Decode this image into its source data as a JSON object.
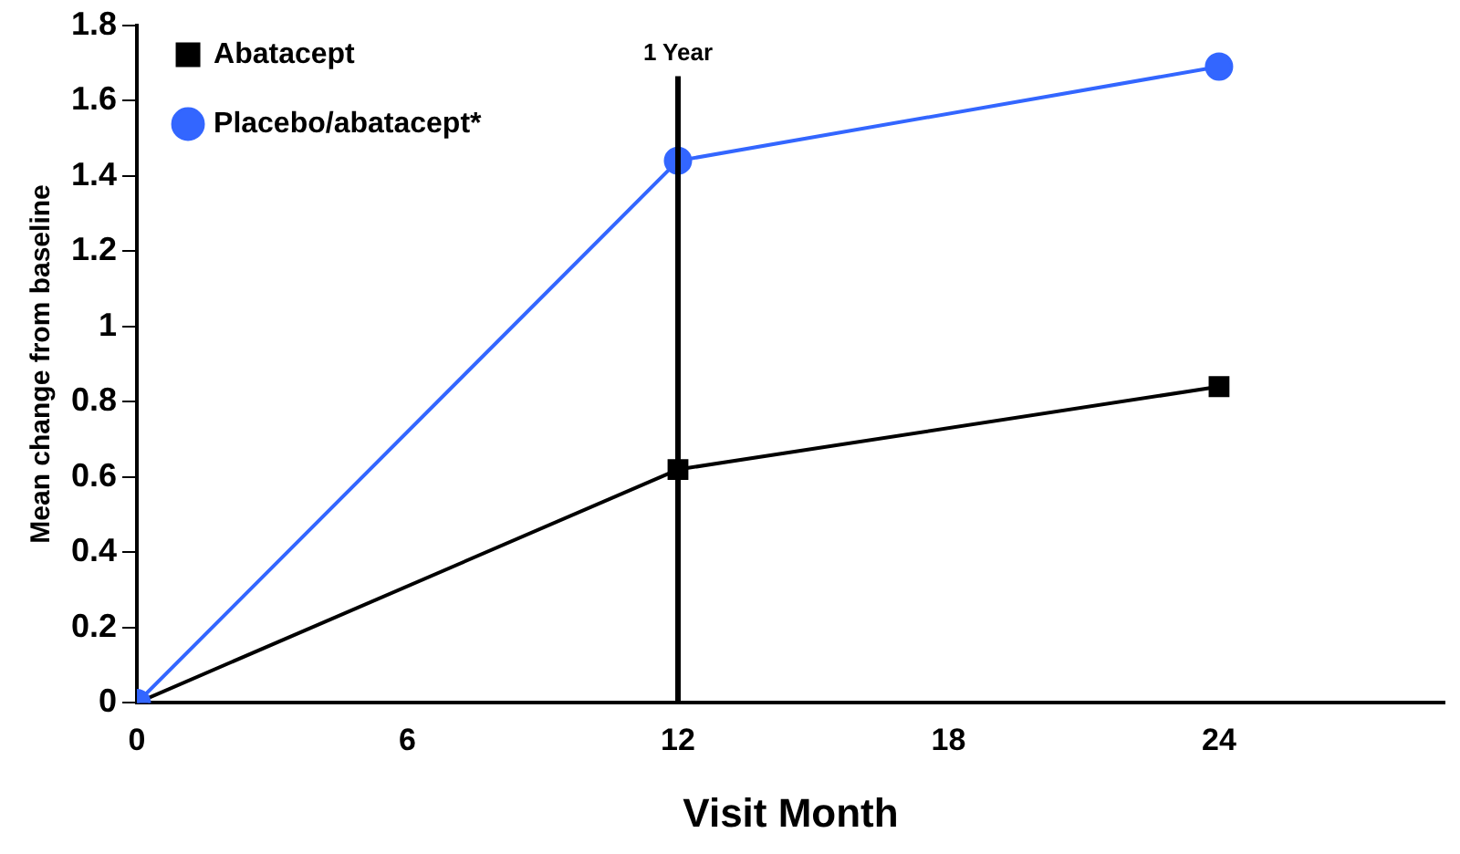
{
  "chart_data": {
    "type": "line",
    "xlabel": "Visit Month",
    "ylabel": "Mean change from baseline",
    "x": [
      0,
      12,
      24
    ],
    "series": [
      {
        "name": "Abatacept",
        "color": "#000000",
        "marker": "square",
        "values": [
          0,
          0.62,
          0.84
        ]
      },
      {
        "name": "Placebo/abatacept*",
        "color": "#3366ff",
        "marker": "circle",
        "values": [
          0,
          1.44,
          1.69
        ]
      }
    ],
    "xlim": [
      0,
      29
    ],
    "xticks": [
      0,
      6,
      12,
      18,
      24
    ],
    "ylim": [
      0,
      1.8
    ],
    "yticks": [
      0,
      0.2,
      0.4,
      0.6,
      0.8,
      1,
      1.2,
      1.4,
      1.6,
      1.8
    ],
    "ref_lines": [
      {
        "axis": "x",
        "value": 12,
        "label": "1 Year",
        "color": "#000000"
      }
    ],
    "grid": false,
    "legend": "top left"
  }
}
